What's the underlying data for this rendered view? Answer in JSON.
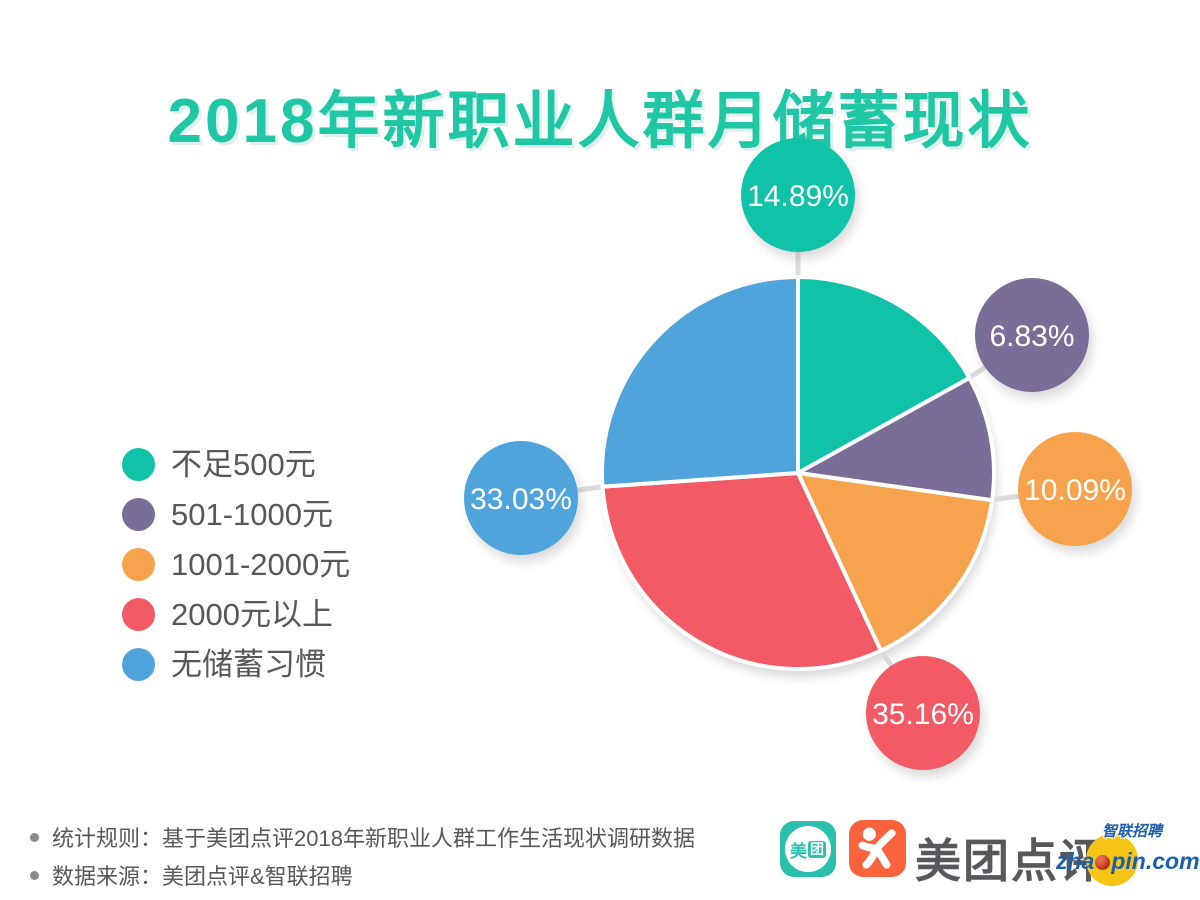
{
  "title": "2018年新职业人群月储蓄现状",
  "chart_data": {
    "type": "pie",
    "title": "2018年新职业人群月储蓄现状",
    "unit": "%",
    "start_angle_deg": 0,
    "direction": "clockwise",
    "legend_position": "left",
    "grid": false,
    "segments": [
      {
        "label": "不足500元",
        "value": 14.89,
        "display": "14.89%",
        "color": "#0FC2A8",
        "display_angle_deg": 61
      },
      {
        "label": "501-1000元",
        "value": 6.83,
        "display": "6.83%",
        "color": "#7A6E99",
        "display_angle_deg": 37
      },
      {
        "label": "1001-2000元",
        "value": 10.09,
        "display": "10.09%",
        "color": "#F7A24C",
        "display_angle_deg": 57
      },
      {
        "label": "2000元以上",
        "value": 35.16,
        "display": "35.16%",
        "color": "#F25B66",
        "display_angle_deg": 111
      },
      {
        "label": "无储蓄习惯",
        "value": 33.03,
        "display": "33.03%",
        "color": "#4FA4DC",
        "display_angle_deg": 94
      }
    ]
  },
  "footnotes": {
    "line1": "统计规则：基于美团点评2018年新职业人群工作生活现状调研数据",
    "line2": "数据来源：美团点评&智联招聘"
  },
  "branding": {
    "meituan_icon_char_1": "美",
    "meituan_icon_char_2": "团",
    "wordmark": "美团点评",
    "zhaopin_text_pre": "zha",
    "zhaopin_text_post": "pin.com",
    "zhaopin_cn": "智联招聘"
  },
  "colors": {
    "title": "#1FC7A5",
    "body_text": "#595757",
    "connector": "#DBDBDB",
    "background": "#FFFFFF",
    "meituan_teal": "#2BC0AE",
    "dianping_orange": "#F8633C",
    "wordmark_gray": "#57585C",
    "zhaopin_blue": "#1C5FAE",
    "zhaopin_yellow": "#F7C515",
    "zhaopin_red": "#B02818"
  }
}
